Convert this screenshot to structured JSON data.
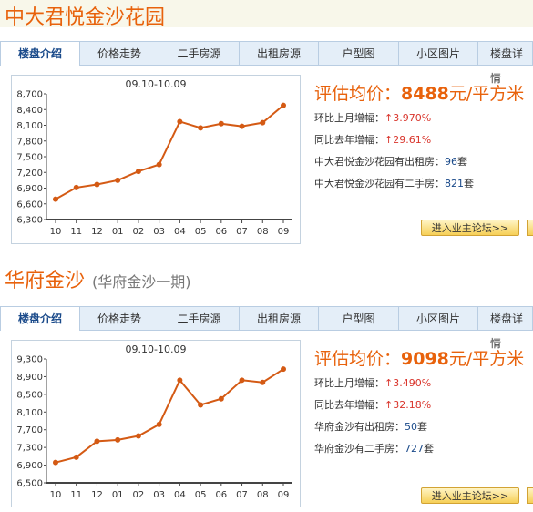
{
  "tab_labels": [
    "楼盘介绍",
    "价格走势",
    "二手房源",
    "出租房源",
    "户型图",
    "小区图片",
    "楼盘详情"
  ],
  "colors": {
    "accent": "#e8620c",
    "line": "#d45a14",
    "link": "#1a4a8a",
    "up": "#d9352c"
  },
  "properties": [
    {
      "title": "中大君悦金沙花园",
      "subtitle": "",
      "price_label": "评估均价：",
      "price_value": "8488",
      "price_unit": "元/平方米",
      "mom_label": "环比上月增幅：",
      "mom_value": "3.970%",
      "yoy_label": "同比去年增幅：",
      "yoy_value": "29.61%",
      "rent_label": "中大君悦金沙花园有出租房：",
      "rent_count": "96",
      "rent_unit": "套",
      "sale_label": "中大君悦金沙花园有二手房：",
      "sale_count": "821",
      "sale_unit": "套",
      "forum_button": "进入业主论坛>>",
      "chart_data": {
        "type": "line",
        "title": "09.10-10.09",
        "categories": [
          "10",
          "11",
          "12",
          "01",
          "02",
          "03",
          "04",
          "05",
          "06",
          "07",
          "08",
          "09"
        ],
        "values": [
          6690,
          6910,
          6970,
          7050,
          7220,
          7350,
          8170,
          8050,
          8130,
          8080,
          8150,
          8480
        ],
        "ylim": [
          6300,
          8700
        ],
        "yticks": [
          "8,700",
          "8,400",
          "8,100",
          "7,800",
          "7,500",
          "7,200",
          "6,900",
          "6,600",
          "6,300"
        ],
        "grid": false
      }
    },
    {
      "title": "华府金沙",
      "subtitle": "(华府金沙一期)",
      "price_label": "评估均价：",
      "price_value": "9098",
      "price_unit": "元/平方米",
      "mom_label": "环比上月增幅：",
      "mom_value": "3.490%",
      "yoy_label": "同比去年增幅：",
      "yoy_value": "32.18%",
      "rent_label": "华府金沙有出租房：",
      "rent_count": "50",
      "rent_unit": "套",
      "sale_label": "华府金沙有二手房：",
      "sale_count": "727",
      "sale_unit": "套",
      "forum_button": "进入业主论坛>>",
      "chart_data": {
        "type": "line",
        "title": "09.10-10.09",
        "categories": [
          "10",
          "11",
          "12",
          "01",
          "02",
          "03",
          "04",
          "05",
          "06",
          "07",
          "08",
          "09"
        ],
        "values": [
          6960,
          7080,
          7440,
          7470,
          7560,
          7820,
          8820,
          8260,
          8400,
          8820,
          8770,
          9070
        ],
        "ylim": [
          6500,
          9300
        ],
        "yticks": [
          "9,300",
          "8,900",
          "8,500",
          "8,100",
          "7,700",
          "7,300",
          "6,900",
          "6,500"
        ],
        "grid": false
      }
    }
  ]
}
